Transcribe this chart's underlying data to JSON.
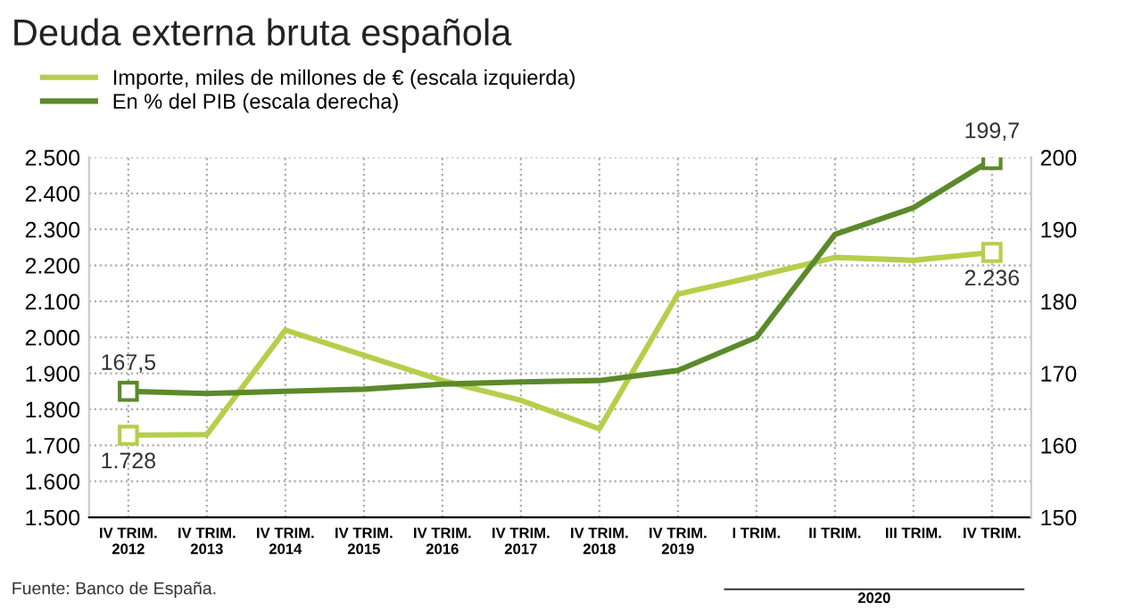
{
  "chart_data": {
    "type": "line",
    "title": "Deuda externa bruta española",
    "categories": [
      "IV TRIM.\n2012",
      "IV TRIM.\n2013",
      "IV TRIM.\n2014",
      "IV TRIM.\n2015",
      "IV TRIM.\n2016",
      "IV TRIM.\n2017",
      "IV TRIM.\n2018",
      "IV TRIM.\n2019",
      "I TRIM.",
      "II TRIM.",
      "III TRIM.",
      "IV TRIM."
    ],
    "series": [
      {
        "name": "Importe, miles de millones de € (escala izquierda)",
        "color": "#b5cf4a",
        "values": [
          1728,
          1730,
          2020,
          1950,
          1880,
          1825,
          1746,
          2120,
          2170,
          2222,
          2214,
          2236
        ],
        "value_labels": [
          "1.728",
          null,
          null,
          null,
          null,
          null,
          null,
          null,
          null,
          null,
          null,
          "2.236"
        ]
      },
      {
        "name": "En % del PIB (escala derecha)",
        "color": "#5b8a2a",
        "axis": "y2",
        "values": [
          167.5,
          167.2,
          167.5,
          167.8,
          168.5,
          168.8,
          169.0,
          170.4,
          175.0,
          189.3,
          193.0,
          199.7
        ],
        "value_labels": [
          "167,5",
          null,
          null,
          null,
          null,
          null,
          null,
          null,
          null,
          null,
          null,
          "199,7"
        ]
      }
    ],
    "ylim": [
      1500,
      2500
    ],
    "yticks": [
      {
        "value": 1500,
        "label": "1.500"
      },
      {
        "value": 1600,
        "label": "1.600"
      },
      {
        "value": 1700,
        "label": "1.700"
      },
      {
        "value": 1800,
        "label": "1.800"
      },
      {
        "value": 1900,
        "label": "1.900"
      },
      {
        "value": 2000,
        "label": "2.000"
      },
      {
        "value": 2100,
        "label": "2.100"
      },
      {
        "value": 2200,
        "label": "2.200"
      },
      {
        "value": 2300,
        "label": "2.300"
      },
      {
        "value": 2400,
        "label": "2.400"
      },
      {
        "value": 2500,
        "label": "2.500"
      }
    ],
    "y2lim": [
      150,
      200
    ],
    "y2ticks": [
      150,
      160,
      170,
      180,
      190,
      200
    ],
    "grid": true,
    "legend": "top left",
    "marker": "none",
    "line_style": "solid",
    "annotations": [
      "2020",
      "Fuente: Banco de España."
    ]
  }
}
